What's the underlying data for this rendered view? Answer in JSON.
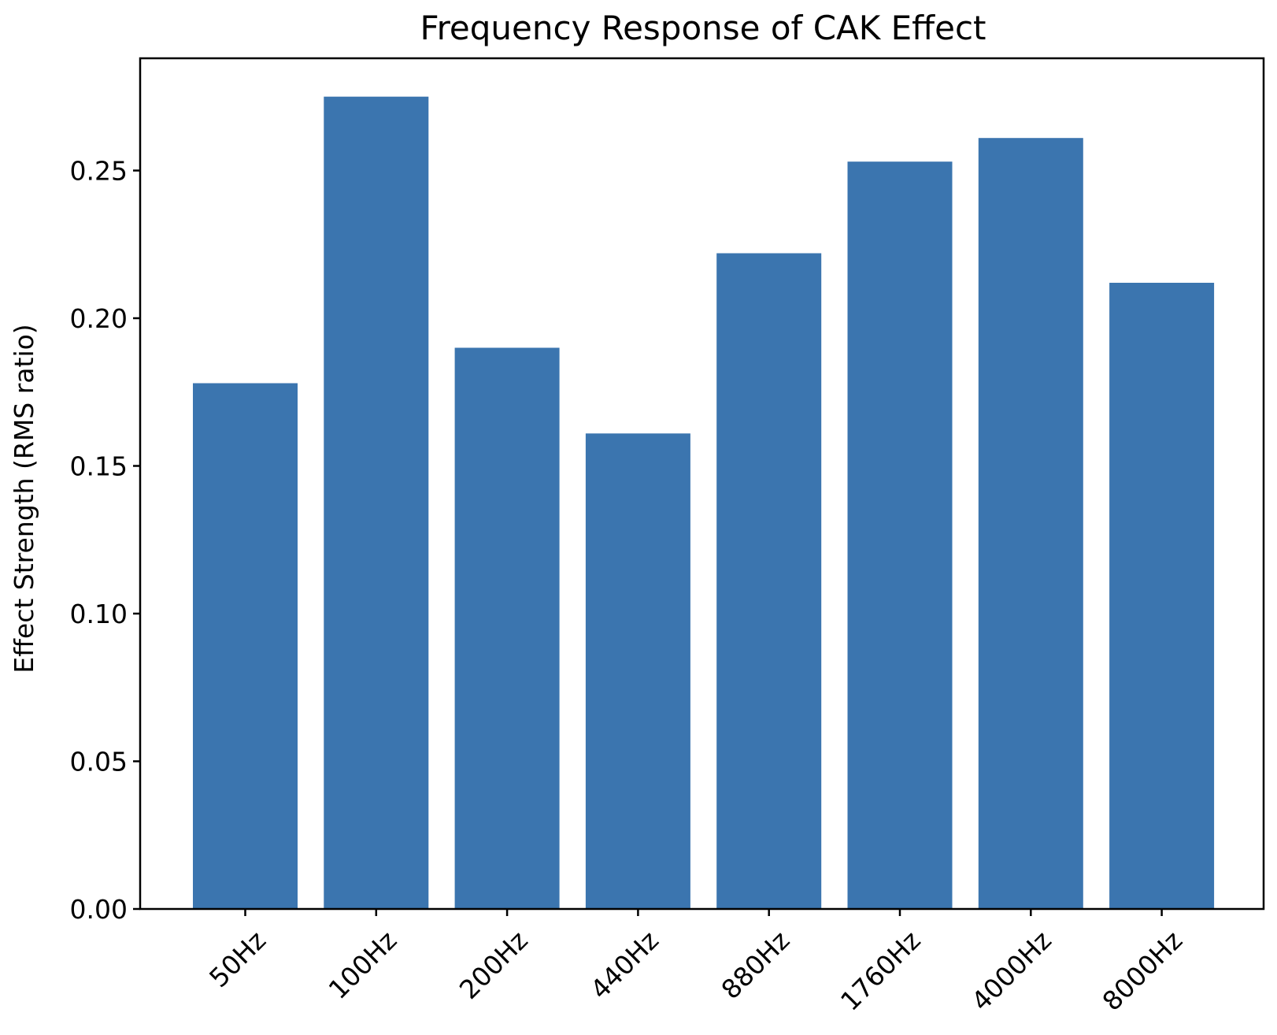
{
  "chart_data": {
    "type": "bar",
    "title": "Frequency Response of CAK Effect",
    "xlabel": "",
    "ylabel": "Effect Strength (RMS ratio)",
    "categories": [
      "50Hz",
      "100Hz",
      "200Hz",
      "440Hz",
      "880Hz",
      "1760Hz",
      "4000Hz",
      "8000Hz"
    ],
    "values": [
      0.178,
      0.275,
      0.19,
      0.161,
      0.222,
      0.253,
      0.261,
      0.212
    ],
    "ylim": [
      0,
      0.288
    ],
    "yticks": [
      0.0,
      0.05,
      0.1,
      0.15,
      0.2,
      0.25
    ],
    "ytick_labels": [
      "0.00",
      "0.05",
      "0.10",
      "0.15",
      "0.20",
      "0.25"
    ],
    "grid": false,
    "bar_color": "#3b75af"
  }
}
